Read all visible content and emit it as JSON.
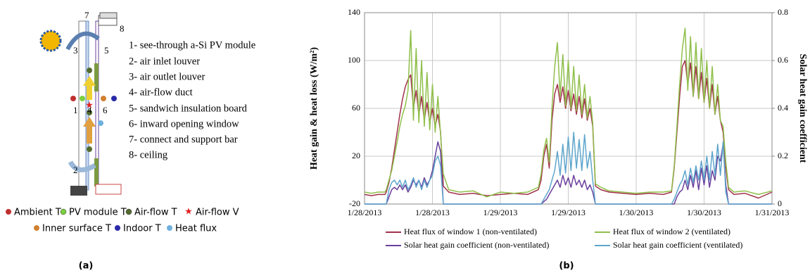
{
  "diagram": {
    "items": [
      "1- see-through a-Si PV module",
      "2- air inlet louver",
      "3- air outlet louver",
      "4- air-flow duct",
      "5- sandwich insulation board",
      "6- inward opening window",
      "7- connect and support bar",
      "8- ceiling"
    ],
    "numbers": [
      "1",
      "2",
      "3",
      "4",
      "5",
      "6",
      "7",
      "8"
    ],
    "markers": [
      "Ambient T",
      "PV module T",
      "Air-flow T",
      "Air-flow V",
      "Inner surface T",
      "Indoor T",
      "Heat flux"
    ],
    "caption": "(a)"
  },
  "chart_data": {
    "type": "line",
    "y_label": "Heat gain & heat loss (W/m²)",
    "y2_label": "Solar heat gain coefficient",
    "caption": "(b)",
    "grid": true,
    "xlim": [
      0,
      3
    ],
    "xticks": [
      {
        "value": 0,
        "label": "1/28/2013"
      },
      {
        "value": 0.5,
        "label": "1/28/2013"
      },
      {
        "value": 1,
        "label": "1/29/2013"
      },
      {
        "value": 1.5,
        "label": "1/29/2013"
      },
      {
        "value": 2,
        "label": "1/30/2013"
      },
      {
        "value": 2.5,
        "label": "1/30/2013"
      },
      {
        "value": 3,
        "label": "1/31/2013"
      }
    ],
    "ylim": [
      -20,
      140
    ],
    "yticks": [
      -20,
      20,
      60,
      100,
      140
    ],
    "y2lim": [
      0,
      0.8
    ],
    "y2ticks": [
      0,
      0.2,
      0.4,
      0.6,
      0.8
    ],
    "x": [
      0,
      0.05,
      0.1,
      0.15,
      0.16,
      0.18,
      0.2,
      0.22,
      0.24,
      0.26,
      0.28,
      0.3,
      0.32,
      0.34,
      0.36,
      0.38,
      0.4,
      0.42,
      0.44,
      0.46,
      0.48,
      0.5,
      0.52,
      0.54,
      0.56,
      0.58,
      0.62,
      0.7,
      0.8,
      0.9,
      1.0,
      1.1,
      1.2,
      1.28,
      1.3,
      1.32,
      1.34,
      1.36,
      1.38,
      1.4,
      1.42,
      1.44,
      1.46,
      1.48,
      1.5,
      1.52,
      1.54,
      1.56,
      1.58,
      1.6,
      1.62,
      1.64,
      1.66,
      1.68,
      1.7,
      1.74,
      1.8,
      1.9,
      2.0,
      2.1,
      2.2,
      2.26,
      2.28,
      2.3,
      2.32,
      2.34,
      2.36,
      2.38,
      2.4,
      2.42,
      2.44,
      2.46,
      2.48,
      2.5,
      2.52,
      2.54,
      2.56,
      2.58,
      2.6,
      2.62,
      2.64,
      2.66,
      2.68,
      2.72,
      2.8,
      2.9,
      3.0
    ],
    "series": [
      {
        "name": "Heat flux of window 1 (non-ventilated)",
        "color": "#a2324b",
        "axis": "y",
        "values": [
          -12,
          -13,
          -12,
          -12,
          -10,
          -2,
          10,
          25,
          40,
          55,
          68,
          78,
          84,
          88,
          60,
          75,
          55,
          70,
          50,
          65,
          48,
          60,
          45,
          55,
          40,
          -5,
          -10,
          -12,
          -11,
          -13,
          -12,
          -11,
          -12,
          -8,
          0,
          20,
          30,
          10,
          50,
          72,
          80,
          65,
          78,
          60,
          75,
          58,
          72,
          55,
          70,
          52,
          68,
          50,
          60,
          45,
          -5,
          -8,
          -10,
          -11,
          -12,
          -11,
          -12,
          -10,
          10,
          40,
          70,
          95,
          100,
          80,
          98,
          70,
          95,
          68,
          90,
          65,
          85,
          60,
          80,
          55,
          70,
          50,
          40,
          10,
          -8,
          -12,
          -11,
          -15,
          -10
        ]
      },
      {
        "name": "Heat flux of window 2 (ventilated)",
        "color": "#8fbf4a",
        "axis": "y",
        "values": [
          -10,
          -11,
          -10,
          -10,
          -8,
          0,
          8,
          20,
          32,
          45,
          55,
          62,
          75,
          125,
          50,
          110,
          48,
          100,
          45,
          90,
          42,
          80,
          40,
          70,
          38,
          5,
          -8,
          -10,
          -9,
          -14,
          -10,
          -11,
          -10,
          -6,
          5,
          25,
          35,
          15,
          60,
          95,
          115,
          70,
          105,
          62,
          100,
          60,
          95,
          58,
          88,
          55,
          80,
          52,
          70,
          48,
          -3,
          -6,
          -9,
          -10,
          -11,
          -10,
          -10,
          -9,
          12,
          45,
          80,
          110,
          127,
          75,
          120,
          70,
          115,
          68,
          110,
          65,
          100,
          60,
          95,
          55,
          80,
          50,
          45,
          15,
          -6,
          -10,
          -9,
          -12,
          -9
        ]
      },
      {
        "name": "Solar heat gain coefficient (non-ventilated)",
        "color": "#6a3f9c",
        "axis": "y2",
        "values": [
          0,
          0,
          0,
          0,
          0,
          0.03,
          0.06,
          0.07,
          0.06,
          0.08,
          0.06,
          0.08,
          0.05,
          0.07,
          0.1,
          0.08,
          0.1,
          0.07,
          0.11,
          0.08,
          0.1,
          0.14,
          0.2,
          0.26,
          0.22,
          0,
          0,
          0,
          0,
          0,
          0,
          0,
          0,
          0,
          0,
          0.01,
          0.02,
          0.04,
          0.06,
          0.08,
          0.1,
          0.07,
          0.12,
          0.08,
          0.11,
          0.07,
          0.12,
          0.08,
          0.1,
          0.07,
          0.1,
          0.06,
          0.08,
          0.05,
          0,
          0,
          0,
          0,
          0,
          0,
          0,
          0,
          0,
          0.03,
          0.05,
          0.06,
          0.1,
          0.06,
          0.12,
          0.07,
          0.14,
          0.06,
          0.15,
          0.08,
          0.16,
          0.07,
          0.14,
          0.1,
          0.2,
          0.18,
          0.25,
          0.08,
          0,
          0,
          0,
          0,
          0
        ]
      },
      {
        "name": "Solar heat gain coefficient (ventilated)",
        "color": "#5ea6cc",
        "axis": "y2",
        "values": [
          0,
          0,
          0,
          0,
          0,
          0.06,
          0.09,
          0.1,
          0.08,
          0.1,
          0.07,
          0.1,
          0.06,
          0.08,
          0.11,
          0.07,
          0.1,
          0.06,
          0.1,
          0.07,
          0.1,
          0.12,
          0.18,
          0.2,
          0.16,
          0,
          0,
          0,
          0,
          0,
          0,
          0,
          0,
          0,
          0,
          0.02,
          0.04,
          0.06,
          0.1,
          0.14,
          0.22,
          0.12,
          0.25,
          0.13,
          0.28,
          0.14,
          0.3,
          0.15,
          0.27,
          0.14,
          0.29,
          0.15,
          0.22,
          0.1,
          0,
          0,
          0,
          0,
          0,
          0,
          0,
          0,
          0.02,
          0.05,
          0.08,
          0.1,
          0.14,
          0.08,
          0.15,
          0.09,
          0.16,
          0.1,
          0.18,
          0.1,
          0.2,
          0.1,
          0.22,
          0.12,
          0.25,
          0.12,
          0.26,
          0.05,
          0,
          0,
          0,
          0,
          0
        ]
      }
    ]
  }
}
